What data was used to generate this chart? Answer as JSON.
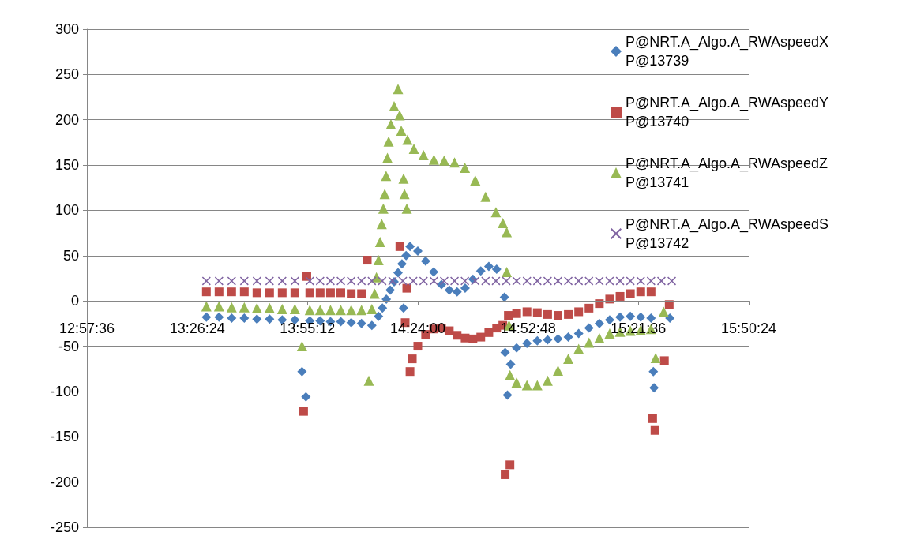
{
  "chart_data": {
    "type": "scatter",
    "xlim": [
      12.96,
      15.84
    ],
    "xticks": [
      {
        "value": 12.96,
        "label": "12:57:36"
      },
      {
        "value": 13.44,
        "label": "13:26:24"
      },
      {
        "value": 13.92,
        "label": "13:55:12"
      },
      {
        "value": 14.4,
        "label": "14:24:00"
      },
      {
        "value": 14.88,
        "label": "14:52:48"
      },
      {
        "value": 15.36,
        "label": "15:21:36"
      },
      {
        "value": 15.84,
        "label": "15:50:24"
      }
    ],
    "ylim": [
      -250,
      300
    ],
    "yticks": [
      -250,
      -200,
      -150,
      -100,
      -50,
      0,
      50,
      100,
      150,
      200,
      250,
      300
    ],
    "grid": "y",
    "legend": "top right",
    "series": [
      {
        "name": "P@NRT.A_Algo.A_RWAspeedX P@13739",
        "color": "#4a7ebb",
        "marker": "diamond",
        "x": [
          13.48,
          13.535,
          13.59,
          13.645,
          13.7,
          13.755,
          13.81,
          13.865,
          13.896,
          13.913,
          13.93,
          13.975,
          14.02,
          14.065,
          14.11,
          14.155,
          14.2,
          14.229,
          14.246,
          14.263,
          14.28,
          14.297,
          14.314,
          14.331,
          14.349,
          14.366,
          14.338,
          14.4,
          14.434,
          14.469,
          14.503,
          14.537,
          14.571,
          14.606,
          14.64,
          14.674,
          14.709,
          14.743,
          14.777,
          14.78,
          14.79,
          14.804,
          14.83,
          14.875,
          14.92,
          14.965,
          15.01,
          15.055,
          15.1,
          15.145,
          15.19,
          15.235,
          15.28,
          15.325,
          15.37,
          15.415,
          15.425,
          15.428,
          15.497
        ],
        "values": [
          -18,
          -18,
          -19,
          -19,
          -20,
          -20,
          -21,
          -21,
          -78,
          -106,
          -22,
          -22,
          -23,
          -23,
          -24,
          -25,
          -27,
          -17,
          -8,
          2,
          12,
          21,
          31,
          41,
          50,
          60,
          -8,
          55,
          44,
          32,
          18,
          12,
          10,
          14,
          24,
          33,
          38,
          35,
          4,
          -57,
          -104,
          -70,
          -52,
          -47,
          -44,
          -43,
          -42,
          -40,
          -36,
          -30,
          -25,
          -21,
          -18,
          -17,
          -18,
          -19,
          -78,
          -96,
          -19
        ]
      },
      {
        "name": "P@NRT.A_Algo.A_RWAspeedY P@13740",
        "color": "#be4b48",
        "marker": "square",
        "x": [
          13.48,
          13.535,
          13.59,
          13.645,
          13.7,
          13.755,
          13.81,
          13.865,
          13.903,
          13.917,
          13.93,
          13.975,
          14.02,
          14.065,
          14.11,
          14.155,
          14.18,
          14.322,
          14.345,
          14.352,
          14.366,
          14.376,
          14.4,
          14.434,
          14.469,
          14.503,
          14.537,
          14.571,
          14.606,
          14.64,
          14.674,
          14.709,
          14.743,
          14.77,
          14.78,
          14.801,
          14.794,
          14.83,
          14.875,
          14.92,
          14.965,
          15.01,
          15.055,
          15.1,
          15.145,
          15.19,
          15.235,
          15.28,
          15.325,
          15.37,
          15.415,
          15.422,
          15.432,
          15.473,
          15.494
        ],
        "values": [
          10,
          10,
          10,
          10,
          9,
          9,
          9,
          9,
          -122,
          27,
          9,
          9,
          9,
          9,
          8,
          8,
          45,
          60,
          -24,
          14,
          -78,
          -64,
          -50,
          -37,
          -31,
          -30,
          -33,
          -38,
          -41,
          -42,
          -40,
          -35,
          -30,
          -27,
          -192,
          -181,
          -16,
          -14,
          -12,
          -13,
          -15,
          -16,
          -15,
          -12,
          -8,
          -3,
          2,
          5,
          8,
          10,
          10,
          -130,
          -143,
          -66,
          -4
        ]
      },
      {
        "name": "P@NRT.A_Algo.A_RWAspeedZ P@13741",
        "color": "#98b954",
        "marker": "triangle",
        "x": [
          13.48,
          13.535,
          13.59,
          13.645,
          13.7,
          13.755,
          13.81,
          13.865,
          13.896,
          13.93,
          13.975,
          14.02,
          14.065,
          14.11,
          14.155,
          14.187,
          14.2,
          14.212,
          14.22,
          14.229,
          14.236,
          14.243,
          14.25,
          14.256,
          14.262,
          14.268,
          14.273,
          14.283,
          14.297,
          14.314,
          14.321,
          14.328,
          14.338,
          14.342,
          14.352,
          14.355,
          14.383,
          14.425,
          14.47,
          14.515,
          14.56,
          14.605,
          14.65,
          14.695,
          14.74,
          14.77,
          14.787,
          14.787,
          14.797,
          14.801,
          14.83,
          14.875,
          14.92,
          14.965,
          15.01,
          15.055,
          15.1,
          15.145,
          15.19,
          15.235,
          15.28,
          15.325,
          15.37,
          15.415,
          15.435,
          15.47
        ],
        "values": [
          -6,
          -6,
          -7,
          -7,
          -8,
          -8,
          -9,
          -9,
          -50,
          -10,
          -10,
          -10,
          -10,
          -10,
          -10,
          -88,
          -9,
          8,
          26,
          45,
          65,
          85,
          102,
          118,
          138,
          158,
          176,
          195,
          215,
          234,
          205,
          188,
          135,
          118,
          102,
          178,
          168,
          161,
          156,
          155,
          153,
          147,
          133,
          115,
          98,
          86,
          76,
          32,
          -27,
          -82,
          -90,
          -93,
          -93,
          -88,
          -77,
          -64,
          -53,
          -46,
          -41,
          -36,
          -34,
          -33,
          -32,
          -31,
          -63,
          -12
        ]
      },
      {
        "name": "P@NRT.A_Algo.A_RWAspeedS P@13742",
        "color": "#8064a2",
        "marker": "cross",
        "x": [
          13.48,
          13.535,
          13.59,
          13.645,
          13.7,
          13.755,
          13.81,
          13.865,
          13.93,
          13.975,
          14.02,
          14.065,
          14.11,
          14.155,
          14.2,
          14.245,
          14.29,
          14.335,
          14.38,
          14.425,
          14.47,
          14.515,
          14.56,
          14.605,
          14.65,
          14.695,
          14.74,
          14.785,
          14.83,
          14.875,
          14.92,
          14.965,
          15.01,
          15.055,
          15.1,
          15.145,
          15.19,
          15.235,
          15.28,
          15.325,
          15.37,
          15.415,
          15.46,
          15.505
        ],
        "values": [
          22,
          22,
          22,
          22,
          22,
          22,
          22,
          22,
          22,
          22,
          22,
          22,
          22,
          22,
          22,
          22,
          22,
          22,
          22,
          22,
          22,
          22,
          22,
          22,
          22,
          22,
          22,
          22,
          22,
          22,
          22,
          22,
          22,
          22,
          22,
          22,
          22,
          22,
          22,
          22,
          22,
          22,
          22,
          22
        ]
      }
    ]
  }
}
